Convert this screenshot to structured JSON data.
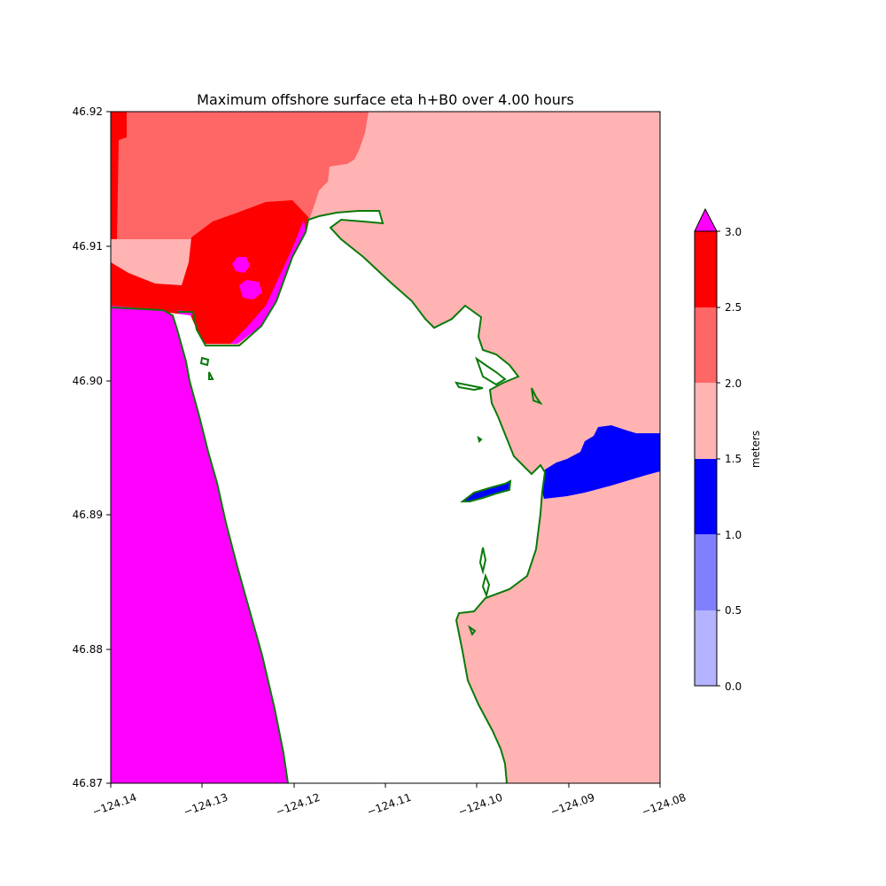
{
  "figure": {
    "title": "Maximum offshore surface eta h+B0 over 4.00 hours"
  },
  "axes": {
    "x_ticks": [
      "−124.14",
      "−124.13",
      "−124.12",
      "−124.11",
      "−124.10",
      "−124.09",
      "−124.08"
    ],
    "y_ticks": [
      "46.92",
      "46.91",
      "46.90",
      "46.89",
      "46.88",
      "46.87"
    ],
    "xlim": [
      -124.14,
      -124.08
    ],
    "ylim": [
      46.87,
      46.92
    ]
  },
  "colorbar": {
    "label": "meters",
    "ticks": [
      "0.0",
      "0.5",
      "1.0",
      "1.5",
      "2.0",
      "2.5",
      "3.0"
    ],
    "levels": [
      0.0,
      0.5,
      1.0,
      1.5,
      2.0,
      2.5,
      3.0
    ],
    "colors": [
      "#b3b3ff",
      "#8080ff",
      "#0000ff",
      "#ffb3b3",
      "#ff6666",
      "#ff0000"
    ],
    "extend_max_color": "#ff00ff"
  },
  "map": {
    "shoreline_color": "#0a7a0a",
    "zones": [
      "1.5-2.0 m",
      "2.0-2.5 m",
      "2.5-3.0 m",
      ">3.0 m",
      "1.0-1.5 m"
    ]
  }
}
